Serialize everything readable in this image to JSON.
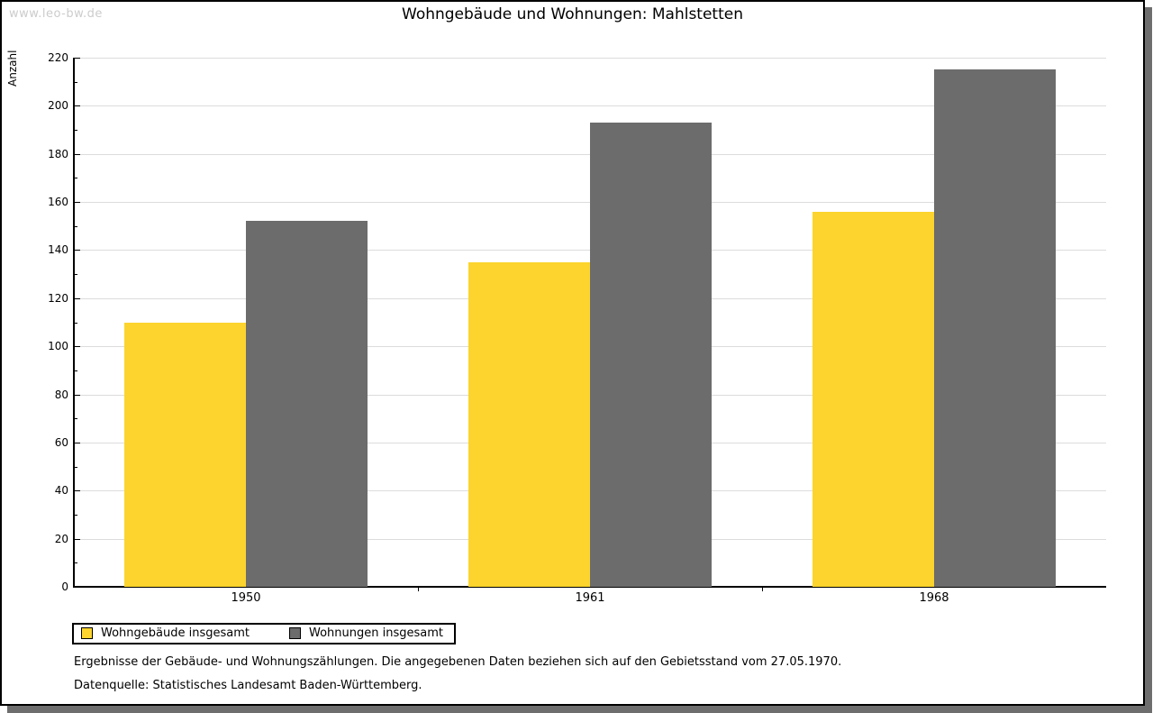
{
  "watermark": "www.leo-bw.de",
  "title": "Wohngebäude und Wohnungen: Mahlstetten",
  "chart_data": {
    "type": "bar",
    "title": "Wohngebäude und Wohnungen: Mahlstetten",
    "categories": [
      "1950",
      "1961",
      "1968"
    ],
    "series": [
      {
        "name": "Wohngebäude insgesamt",
        "color": "#FCD42D",
        "values": [
          110,
          135,
          156
        ]
      },
      {
        "name": "Wohnungen insgesamt",
        "color": "#6C6C6C",
        "values": [
          152,
          193,
          215
        ]
      }
    ],
    "ylabel": "Anzahl",
    "xlabel": "",
    "ylim": [
      0,
      220
    ],
    "ytick_step": 20,
    "yminor_step": 10,
    "grid": true,
    "gridline_color": "#DCDCDC",
    "legend_position": "bottom-left"
  },
  "footnotes": [
    "Ergebnisse der Gebäude- und Wohnungszählungen. Die angegebenen Daten beziehen sich auf den Gebietsstand vom 27.05.1970.",
    "Datenquelle: Statistisches Landesamt Baden-Württemberg."
  ]
}
